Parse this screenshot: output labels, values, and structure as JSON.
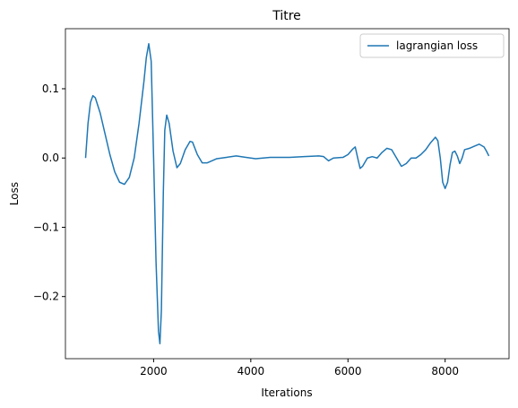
{
  "chart_data": {
    "type": "line",
    "title": "Titre",
    "x_label": "Iterations",
    "y_label": "Loss",
    "x": [
      600,
      650,
      700,
      750,
      800,
      900,
      1000,
      1100,
      1200,
      1300,
      1400,
      1500,
      1600,
      1700,
      1800,
      1850,
      1900,
      1950,
      2000,
      2050,
      2100,
      2130,
      2160,
      2200,
      2230,
      2270,
      2320,
      2400,
      2480,
      2550,
      2650,
      2750,
      2800,
      2900,
      3000,
      3100,
      3300,
      3500,
      3700,
      3900,
      4100,
      4400,
      4800,
      5100,
      5400,
      5500,
      5600,
      5700,
      5900,
      6000,
      6100,
      6150,
      6200,
      6250,
      6300,
      6400,
      6500,
      6600,
      6700,
      6800,
      6900,
      7000,
      7100,
      7200,
      7300,
      7400,
      7500,
      7600,
      7700,
      7800,
      7850,
      7900,
      7950,
      8000,
      8050,
      8100,
      8150,
      8200,
      8250,
      8300,
      8350,
      8400,
      8500,
      8600,
      8700,
      8800,
      8850,
      8900
    ],
    "series": [
      {
        "name": "lagrangian loss",
        "color": "#1f77b4",
        "values": [
          0.0,
          0.05,
          0.08,
          0.09,
          0.087,
          0.065,
          0.035,
          0.005,
          -0.02,
          -0.035,
          -0.038,
          -0.028,
          0.0,
          0.05,
          0.11,
          0.145,
          0.165,
          0.14,
          0.0,
          -0.15,
          -0.25,
          -0.268,
          -0.22,
          -0.05,
          0.04,
          0.062,
          0.05,
          0.01,
          -0.014,
          -0.008,
          0.012,
          0.024,
          0.023,
          0.005,
          -0.007,
          -0.007,
          -0.001,
          0.001,
          0.003,
          0.001,
          -0.001,
          0.001,
          0.001,
          0.002,
          0.003,
          0.002,
          -0.004,
          0.0,
          0.001,
          0.005,
          0.013,
          0.016,
          0.0,
          -0.015,
          -0.012,
          0.0,
          0.002,
          0.0,
          0.008,
          0.014,
          0.012,
          0.0,
          -0.012,
          -0.008,
          0.0,
          0.0,
          0.005,
          0.012,
          0.022,
          0.03,
          0.025,
          0.0,
          -0.035,
          -0.044,
          -0.035,
          -0.01,
          0.008,
          0.01,
          0.003,
          -0.008,
          0.0,
          0.012,
          0.014,
          0.017,
          0.02,
          0.016,
          0.01,
          0.003
        ]
      }
    ],
    "xlim": [
      185,
      9315
    ],
    "ylim": [
      -0.2897,
      0.1867
    ],
    "xticks": [
      2000,
      4000,
      6000,
      8000
    ],
    "yticks": [
      {
        "value": -0.2,
        "label": "−0.2"
      },
      {
        "value": -0.1,
        "label": "−0.1"
      },
      {
        "value": 0.0,
        "label": "0.0"
      },
      {
        "value": 0.1,
        "label": "0.1"
      }
    ],
    "legend": "upper right"
  }
}
